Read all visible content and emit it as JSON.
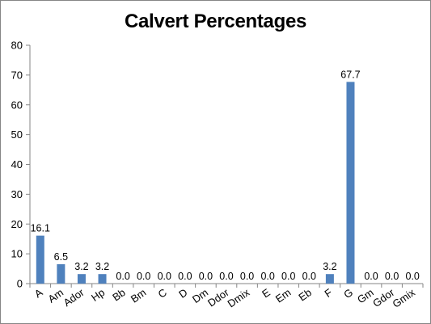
{
  "chart_data": {
    "type": "bar",
    "title": "Calvert Percentages",
    "xlabel": "",
    "ylabel": "",
    "ylim": [
      0,
      80
    ],
    "yticks": [
      0,
      10,
      20,
      30,
      40,
      50,
      60,
      70,
      80
    ],
    "categories": [
      "A",
      "Am",
      "Ador",
      "Hp",
      "Bb",
      "Bm",
      "C",
      "D",
      "Dm",
      "Ddor",
      "Dmix",
      "E",
      "Em",
      "Eb",
      "F",
      "G",
      "Gm",
      "Gdor",
      "Gmix"
    ],
    "values": [
      16.1,
      6.5,
      3.2,
      3.2,
      0.0,
      0.0,
      0.0,
      0.0,
      0.0,
      0.0,
      0.0,
      0.0,
      0.0,
      0.0,
      3.2,
      67.7,
      0.0,
      0.0,
      0.0
    ],
    "data_labels": [
      "16.1",
      "6.5",
      "3.2",
      "3.2",
      "0.0",
      "0.0",
      "0.0",
      "0.0",
      "0.0",
      "0.0",
      "0.0",
      "0.0",
      "0.0",
      "0.0",
      "3.2",
      "67.7",
      "0.0",
      "0.0",
      "0.0"
    ],
    "bar_color": "#4f81bd",
    "gridlines": false,
    "legend": "none"
  }
}
